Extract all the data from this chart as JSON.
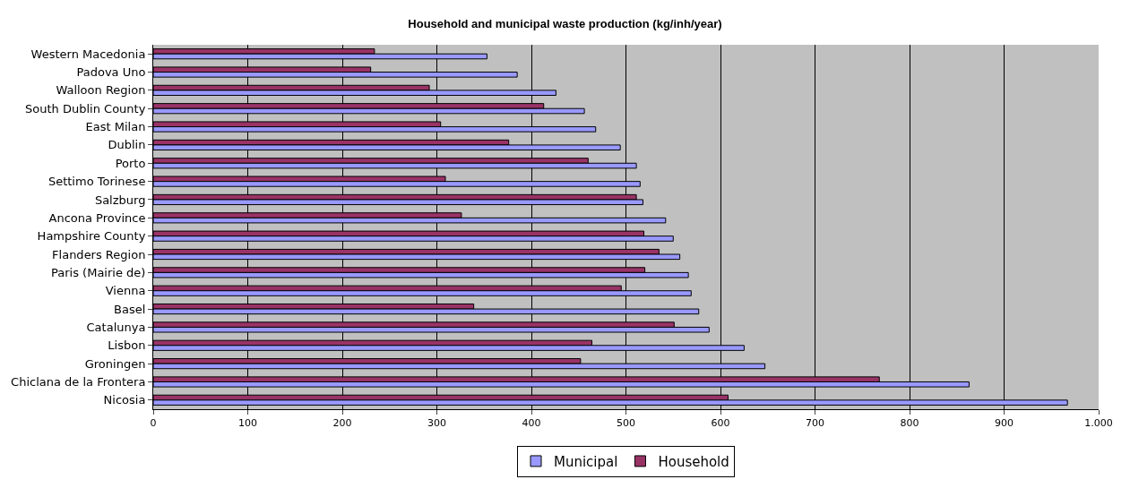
{
  "chart_data": {
    "type": "bar",
    "orientation": "horizontal",
    "title": "Household and municipal waste production (kg/inh/year)",
    "categories": [
      "Western Macedonia",
      "Padova Uno",
      "Walloon Region",
      "South Dublin County",
      "East Milan",
      "Dublin",
      "Porto",
      "Settimo Torinese",
      "Salzburg",
      "Ancona Province",
      "Hampshire County",
      "Flanders Region",
      "Paris (Mairie de)",
      "Vienna",
      "Basel",
      "Catalunya",
      "Lisbon",
      "Groningen",
      "Chiclana de la Frontera",
      "Nicosia"
    ],
    "series": [
      {
        "name": "Municipal",
        "color": "#9999ff",
        "values": [
          353,
          385,
          426,
          456,
          468,
          494,
          511,
          515,
          518,
          542,
          550,
          557,
          566,
          569,
          577,
          588,
          625,
          647,
          863,
          967
        ]
      },
      {
        "name": "Household",
        "color": "#993366",
        "values": [
          234,
          230,
          292,
          413,
          304,
          376,
          460,
          309,
          511,
          326,
          519,
          535,
          520,
          495,
          339,
          551,
          464,
          452,
          768,
          608
        ]
      }
    ],
    "xlim": [
      0,
      1000
    ],
    "xticks": [
      0,
      100,
      200,
      300,
      400,
      500,
      600,
      700,
      800,
      900,
      {
        "value": 1000,
        "label": "1.000"
      }
    ],
    "grid": "x",
    "legend": "bottom"
  }
}
